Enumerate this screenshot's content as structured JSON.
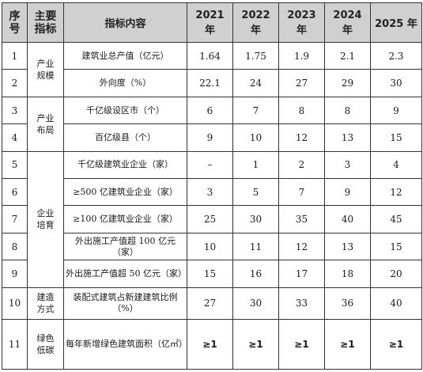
{
  "table": {
    "headers": {
      "no": "序\n号",
      "category": "主要\n指标",
      "indicator": "指标内容",
      "years": [
        "2021 年",
        "2022 年",
        "2023 年",
        "2024 年",
        "2025 年"
      ]
    },
    "categories": [
      {
        "label": "产业\n规模"
      },
      {
        "label": "产业\n布局"
      },
      {
        "label": "企业\n培育"
      },
      {
        "label": "建造\n方式"
      },
      {
        "label": "绿色\n低碳"
      }
    ],
    "rows": [
      {
        "no": "1",
        "indicator": "建筑业总产值（亿元）",
        "values": [
          "1.64",
          "1.75",
          "1.9",
          "2.1",
          "2.3"
        ]
      },
      {
        "no": "2",
        "indicator": "外向度（%）",
        "values": [
          "22.1",
          "24",
          "27",
          "29",
          "30"
        ]
      },
      {
        "no": "3",
        "indicator": "千亿级设区市（个）",
        "values": [
          "6",
          "7",
          "8",
          "8",
          "9"
        ]
      },
      {
        "no": "4",
        "indicator": "百亿级县（个）",
        "values": [
          "9",
          "10",
          "12",
          "13",
          "15"
        ]
      },
      {
        "no": "5",
        "indicator": "千亿级建筑业企业（家）",
        "values": [
          "–",
          "1",
          "2",
          "3",
          "4"
        ]
      },
      {
        "no": "6",
        "indicator": "≥500 亿建筑业企业（家）",
        "values": [
          "3",
          "5",
          "7",
          "9",
          "12"
        ]
      },
      {
        "no": "7",
        "indicator": "≥100 亿建筑业企业（家）",
        "values": [
          "25",
          "30",
          "35",
          "40",
          "45"
        ]
      },
      {
        "no": "8",
        "indicator": "外出施工产值超 100 亿元（家）",
        "values": [
          "10",
          "11",
          "12",
          "13",
          "15"
        ]
      },
      {
        "no": "9",
        "indicator": "外出施工产值超 50 亿元（家）",
        "values": [
          "15",
          "16",
          "17",
          "18",
          "20"
        ]
      },
      {
        "no": "10",
        "indicator": "装配式建筑占新建建筑比例（%）",
        "values": [
          "27",
          "30",
          "33",
          "36",
          "40"
        ]
      },
      {
        "no": "11",
        "indicator": "每年新增绿色建筑面积（亿㎡）",
        "values": [
          "≥1",
          "≥1",
          "≥1",
          "≥1",
          "≥1"
        ]
      }
    ]
  }
}
